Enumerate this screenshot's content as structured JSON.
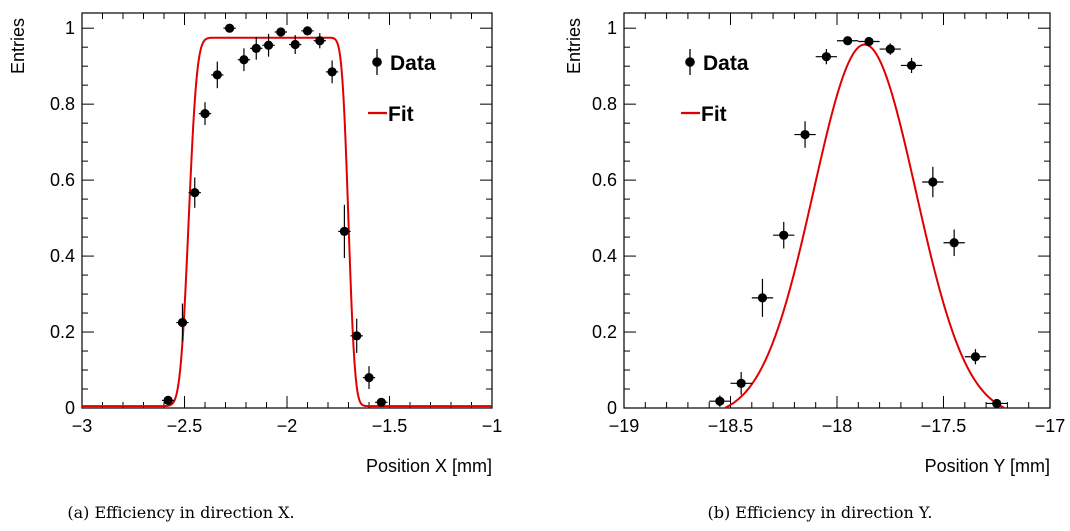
{
  "chart_data": [
    {
      "type": "scatter",
      "xlabel": "Position X [mm]",
      "ylabel": "Entries",
      "xlim": [
        -3,
        -1
      ],
      "ylim": [
        0,
        1.04
      ],
      "xticks": [
        -3,
        -2.5,
        -2,
        -1.5,
        -1
      ],
      "xtick_labels": [
        "−3",
        "−2.5",
        "−2",
        "−1.5",
        "−1"
      ],
      "yticks": [
        0,
        0.2,
        0.4,
        0.6,
        0.8,
        1
      ],
      "ytick_labels": [
        "0",
        "0.2",
        "0.4",
        "0.6",
        "0.8",
        "1"
      ],
      "legend": [
        "Data",
        "Fit"
      ],
      "legend_position": "top-right",
      "caption": "(a) Efficiency in direction X.",
      "series": [
        {
          "name": "Data",
          "x": [
            -2.58,
            -2.51,
            -2.45,
            -2.4,
            -2.34,
            -2.28,
            -2.21,
            -2.15,
            -2.09,
            -2.03,
            -1.96,
            -1.9,
            -1.84,
            -1.78,
            -1.72,
            -1.66,
            -1.6,
            -1.54
          ],
          "y": [
            0.02,
            0.225,
            0.567,
            0.775,
            0.877,
            1.0,
            0.917,
            0.947,
            0.955,
            0.99,
            0.957,
            0.993,
            0.967,
            0.885,
            0.465,
            0.19,
            0.08,
            0.015
          ],
          "yerr": [
            0.012,
            0.05,
            0.04,
            0.03,
            0.035,
            0.008,
            0.03,
            0.03,
            0.03,
            0.01,
            0.025,
            0.01,
            0.02,
            0.03,
            0.07,
            0.045,
            0.03,
            0.01
          ],
          "xerr": [
            0.03,
            0.03,
            0.03,
            0.03,
            0.03,
            0.03,
            0.03,
            0.03,
            0.03,
            0.03,
            0.03,
            0.03,
            0.03,
            0.03,
            0.03,
            0.03,
            0.03,
            0.03
          ]
        },
        {
          "name": "Fit",
          "type": "line",
          "model": "plateau-erf",
          "plateau": 0.975,
          "baseline": 0.005,
          "rise_center": -2.48,
          "rise_width": 0.045,
          "fall_center": -1.7,
          "fall_width": 0.035,
          "color": "#e00000"
        }
      ]
    },
    {
      "type": "scatter",
      "xlabel": "Position Y [mm]",
      "ylabel": "Entries",
      "xlim": [
        -19,
        -17
      ],
      "ylim": [
        0,
        1.04
      ],
      "xticks": [
        -19,
        -18.5,
        -18,
        -17.5,
        -17
      ],
      "xtick_labels": [
        "−19",
        "−18.5",
        "−18",
        "−17.5",
        "−17"
      ],
      "yticks": [
        0,
        0.2,
        0.4,
        0.6,
        0.8,
        1
      ],
      "ytick_labels": [
        "0",
        "0.2",
        "0.4",
        "0.6",
        "0.8",
        "1"
      ],
      "legend": [
        "Data",
        "Fit"
      ],
      "legend_position": "top-left",
      "caption": "(b) Efficiency in direction Y.",
      "series": [
        {
          "name": "Data",
          "x": [
            -18.55,
            -18.45,
            -18.35,
            -18.25,
            -18.15,
            -18.05,
            -17.95,
            -17.85,
            -17.75,
            -17.65,
            -17.55,
            -17.45,
            -17.35,
            -17.25
          ],
          "y": [
            0.018,
            0.065,
            0.29,
            0.455,
            0.72,
            0.925,
            0.967,
            0.965,
            0.945,
            0.902,
            0.595,
            0.435,
            0.135,
            0.012
          ],
          "yerr": [
            0.015,
            0.03,
            0.05,
            0.035,
            0.035,
            0.02,
            0.01,
            0.01,
            0.015,
            0.02,
            0.04,
            0.035,
            0.02,
            0.01
          ],
          "xerr": [
            0.05,
            0.05,
            0.05,
            0.05,
            0.05,
            0.05,
            0.05,
            0.05,
            0.05,
            0.05,
            0.05,
            0.05,
            0.05,
            0.05
          ]
        },
        {
          "name": "Fit",
          "type": "line",
          "model": "gaussian",
          "amplitude": 0.98,
          "mean": -17.87,
          "sigma": 0.24,
          "offset": -0.023,
          "color": "#e00000"
        }
      ]
    }
  ]
}
